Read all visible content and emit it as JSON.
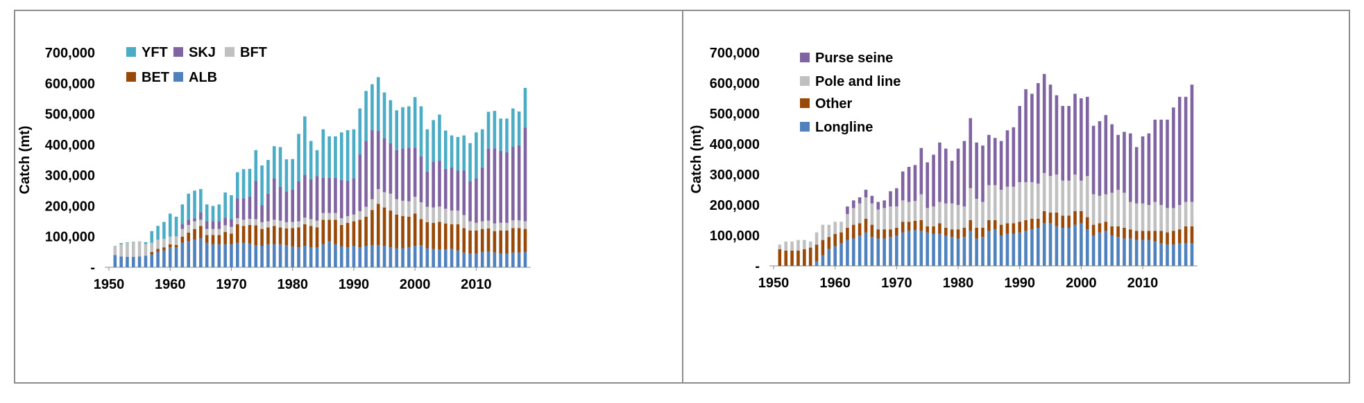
{
  "chart_data": [
    {
      "type": "bar",
      "stacked": true,
      "ylabel": "Catch (mt)",
      "xlabel": "",
      "ylim": [
        0,
        700000
      ],
      "yticks": [
        "-",
        "100,000",
        "200,000",
        "300,000",
        "400,000",
        "500,000",
        "600,000",
        "700,000"
      ],
      "xticks": [
        "1950",
        "1960",
        "1970",
        "1980",
        "1990",
        "2000",
        "2010"
      ],
      "legend_position": "top-left",
      "years": [
        1951,
        1952,
        1953,
        1954,
        1955,
        1956,
        1957,
        1958,
        1959,
        1960,
        1961,
        1962,
        1963,
        1964,
        1965,
        1966,
        1967,
        1968,
        1969,
        1970,
        1971,
        1972,
        1973,
        1974,
        1975,
        1976,
        1977,
        1978,
        1979,
        1980,
        1981,
        1982,
        1983,
        1984,
        1985,
        1986,
        1987,
        1988,
        1989,
        1990,
        1991,
        1992,
        1993,
        1994,
        1995,
        1996,
        1997,
        1998,
        1999,
        2000,
        2001,
        2002,
        2003,
        2004,
        2005,
        2006,
        2007,
        2008,
        2009,
        2010,
        2011,
        2012,
        2013,
        2014,
        2015,
        2016,
        2017,
        2018
      ],
      "series": [
        {
          "name": "ALB",
          "color": "#4f81bd",
          "values": [
            40000,
            35000,
            34000,
            34000,
            35000,
            38000,
            42000,
            50000,
            55000,
            65000,
            65000,
            80000,
            85000,
            90000,
            95000,
            80000,
            75000,
            75000,
            75000,
            75000,
            80000,
            80000,
            78000,
            72000,
            70000,
            75000,
            75000,
            75000,
            72000,
            68000,
            65000,
            70000,
            65000,
            65000,
            75000,
            85000,
            75000,
            68000,
            65000,
            70000,
            65000,
            70000,
            72000,
            72000,
            70000,
            65000,
            62000,
            62000,
            65000,
            70000,
            72000,
            62000,
            60000,
            58000,
            58000,
            60000,
            55000,
            48000,
            45000,
            45000,
            50000,
            52000,
            48000,
            45000,
            45000,
            48000,
            48000,
            50000
          ]
        },
        {
          "name": "BET",
          "color": "#984807",
          "values": [
            0,
            0,
            0,
            0,
            0,
            0,
            8000,
            10000,
            10000,
            10000,
            8000,
            20000,
            28000,
            35000,
            40000,
            25000,
            30000,
            30000,
            40000,
            35000,
            60000,
            55000,
            60000,
            65000,
            55000,
            55000,
            60000,
            55000,
            55000,
            60000,
            65000,
            70000,
            70000,
            65000,
            80000,
            70000,
            80000,
            70000,
            80000,
            80000,
            90000,
            95000,
            115000,
            135000,
            125000,
            120000,
            110000,
            105000,
            100000,
            105000,
            85000,
            85000,
            85000,
            90000,
            85000,
            80000,
            85000,
            80000,
            75000,
            75000,
            75000,
            75000,
            70000,
            75000,
            75000,
            80000,
            80000,
            75000
          ]
        },
        {
          "name": "BFT",
          "color": "#c0c0c0",
          "values": [
            30000,
            40000,
            45000,
            50000,
            50000,
            38000,
            30000,
            30000,
            28000,
            25000,
            28000,
            25000,
            25000,
            25000,
            20000,
            20000,
            20000,
            20000,
            22000,
            22000,
            20000,
            20000,
            20000,
            20000,
            22000,
            20000,
            20000,
            22000,
            20000,
            20000,
            20000,
            22000,
            22000,
            22000,
            22000,
            22000,
            22000,
            22000,
            22000,
            22000,
            28000,
            32000,
            35000,
            48000,
            50000,
            55000,
            50000,
            50000,
            50000,
            55000,
            55000,
            50000,
            50000,
            50000,
            48000,
            45000,
            45000,
            42000,
            30000,
            25000,
            25000,
            25000,
            25000,
            25000,
            25000,
            25000,
            25000,
            25000
          ]
        },
        {
          "name": "SKJ",
          "color": "#8064a2",
          "values": [
            0,
            0,
            0,
            0,
            0,
            0,
            0,
            0,
            0,
            0,
            0,
            15000,
            17000,
            10000,
            25000,
            25000,
            25000,
            25000,
            25000,
            25000,
            65000,
            70000,
            73000,
            125000,
            55000,
            90000,
            135000,
            110000,
            100000,
            105000,
            130000,
            140000,
            130000,
            145000,
            115000,
            115000,
            115000,
            125000,
            115000,
            118000,
            185000,
            215000,
            225000,
            190000,
            175000,
            165000,
            160000,
            170000,
            175000,
            160000,
            150000,
            115000,
            150000,
            150000,
            130000,
            140000,
            130000,
            145000,
            130000,
            145000,
            175000,
            235000,
            245000,
            235000,
            230000,
            240000,
            245000,
            305000
          ]
        },
        {
          "name": "YFT",
          "color": "#4bacc6",
          "values": [
            0,
            4000,
            2000,
            0,
            0,
            6000,
            38000,
            45000,
            55000,
            75000,
            64000,
            65000,
            85000,
            90000,
            75000,
            55000,
            50000,
            55000,
            82000,
            78000,
            85000,
            95000,
            90000,
            100000,
            130000,
            110000,
            105000,
            130000,
            105000,
            100000,
            155000,
            190000,
            125000,
            85000,
            158000,
            135000,
            135000,
            155000,
            165000,
            160000,
            150000,
            163000,
            150000,
            175000,
            150000,
            140000,
            130000,
            135000,
            135000,
            165000,
            163000,
            138000,
            135000,
            150000,
            125000,
            105000,
            110000,
            115000,
            125000,
            150000,
            125000,
            120000,
            122000,
            105000,
            110000,
            125000,
            110000,
            130000
          ]
        }
      ]
    },
    {
      "type": "bar",
      "stacked": true,
      "ylabel": "Catch (mt)",
      "xlabel": "",
      "ylim": [
        0,
        700000
      ],
      "yticks": [
        "-",
        "100,000",
        "200,000",
        "300,000",
        "400,000",
        "500,000",
        "600,000",
        "700,000"
      ],
      "xticks": [
        "1950",
        "1960",
        "1970",
        "1980",
        "1990",
        "2000",
        "2010"
      ],
      "legend_position": "top-left",
      "years": [
        1951,
        1952,
        1953,
        1954,
        1955,
        1956,
        1957,
        1958,
        1959,
        1960,
        1961,
        1962,
        1963,
        1964,
        1965,
        1966,
        1967,
        1968,
        1969,
        1970,
        1971,
        1972,
        1973,
        1974,
        1975,
        1976,
        1977,
        1978,
        1979,
        1980,
        1981,
        1982,
        1983,
        1984,
        1985,
        1986,
        1987,
        1988,
        1989,
        1990,
        1991,
        1992,
        1993,
        1994,
        1995,
        1996,
        1997,
        1998,
        1999,
        2000,
        2001,
        2002,
        2003,
        2004,
        2005,
        2006,
        2007,
        2008,
        2009,
        2010,
        2011,
        2012,
        2013,
        2014,
        2015,
        2016,
        2017,
        2018
      ],
      "series": [
        {
          "name": "Longline",
          "color": "#4f81bd",
          "values": [
            0,
            0,
            0,
            0,
            0,
            0,
            15000,
            35000,
            55000,
            65000,
            75000,
            85000,
            90000,
            100000,
            110000,
            95000,
            90000,
            90000,
            95000,
            100000,
            110000,
            115000,
            118000,
            115000,
            110000,
            105000,
            105000,
            100000,
            95000,
            90000,
            95000,
            115000,
            90000,
            95000,
            115000,
            120000,
            100000,
            105000,
            105000,
            110000,
            115000,
            120000,
            125000,
            140000,
            140000,
            130000,
            125000,
            125000,
            135000,
            140000,
            120000,
            100000,
            110000,
            115000,
            100000,
            95000,
            90000,
            90000,
            85000,
            85000,
            85000,
            80000,
            75000,
            70000,
            70000,
            75000,
            75000,
            75000
          ]
        },
        {
          "name": "Other",
          "color": "#984807",
          "values": [
            55000,
            50000,
            50000,
            50000,
            55000,
            60000,
            55000,
            50000,
            40000,
            40000,
            35000,
            40000,
            45000,
            40000,
            45000,
            40000,
            30000,
            30000,
            25000,
            25000,
            35000,
            30000,
            30000,
            35000,
            20000,
            25000,
            35000,
            25000,
            25000,
            30000,
            30000,
            35000,
            35000,
            30000,
            35000,
            30000,
            35000,
            35000,
            35000,
            35000,
            35000,
            35000,
            30000,
            40000,
            35000,
            45000,
            40000,
            40000,
            45000,
            40000,
            40000,
            35000,
            30000,
            30000,
            30000,
            35000,
            35000,
            30000,
            30000,
            30000,
            30000,
            35000,
            40000,
            40000,
            45000,
            45000,
            55000,
            55000
          ]
        },
        {
          "name": "Pole and line",
          "color": "#c0c0c0",
          "values": [
            15000,
            30000,
            30000,
            35000,
            30000,
            20000,
            40000,
            50000,
            40000,
            40000,
            35000,
            45000,
            55000,
            65000,
            70000,
            70000,
            65000,
            70000,
            75000,
            70000,
            70000,
            65000,
            65000,
            85000,
            60000,
            65000,
            70000,
            80000,
            85000,
            80000,
            70000,
            105000,
            95000,
            85000,
            115000,
            115000,
            115000,
            120000,
            120000,
            130000,
            125000,
            120000,
            115000,
            125000,
            120000,
            125000,
            115000,
            115000,
            120000,
            100000,
            135000,
            100000,
            90000,
            90000,
            110000,
            120000,
            115000,
            90000,
            90000,
            90000,
            85000,
            95000,
            85000,
            80000,
            75000,
            80000,
            80000,
            80000
          ]
        },
        {
          "name": "Purse seine",
          "color": "#8064a2",
          "values": [
            0,
            0,
            0,
            0,
            0,
            0,
            0,
            0,
            0,
            0,
            0,
            25000,
            25000,
            20000,
            25000,
            25000,
            25000,
            25000,
            50000,
            60000,
            95000,
            115000,
            118000,
            152000,
            150000,
            170000,
            195000,
            180000,
            140000,
            185000,
            215000,
            230000,
            185000,
            185000,
            165000,
            155000,
            160000,
            185000,
            195000,
            250000,
            305000,
            290000,
            330000,
            325000,
            300000,
            260000,
            245000,
            245000,
            265000,
            270000,
            260000,
            225000,
            245000,
            260000,
            225000,
            180000,
            200000,
            225000,
            185000,
            220000,
            235000,
            270000,
            280000,
            290000,
            330000,
            355000,
            345000,
            385000
          ]
        }
      ]
    }
  ]
}
